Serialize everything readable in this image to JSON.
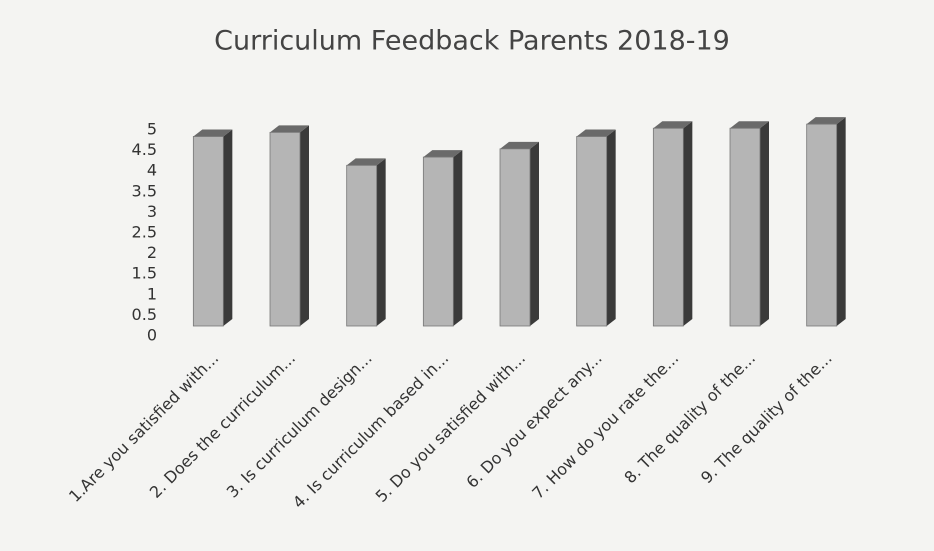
{
  "chart_data": {
    "type": "bar3d",
    "title": "Curriculum Feedback Parents 2018-19",
    "categories": [
      "1.Are you satisfied with...",
      "2. Does the curriculum...",
      "3. Is curriculum design...",
      "4. Is curriculum based in...",
      "5.  Do you satisfied with...",
      "6. Do you expect any...",
      "7. How do you rate the...",
      "8. The quality of the...",
      "9. The quality of the..."
    ],
    "values": [
      4.6,
      4.7,
      3.9,
      4.1,
      4.3,
      4.6,
      4.8,
      4.8,
      4.9
    ],
    "color": "#b5b5b5",
    "ylim": [
      0,
      5
    ],
    "yticks": [
      0,
      0.5,
      1,
      1.5,
      2,
      2.5,
      3,
      3.5,
      4,
      4.5,
      5
    ],
    "grid": false
  }
}
